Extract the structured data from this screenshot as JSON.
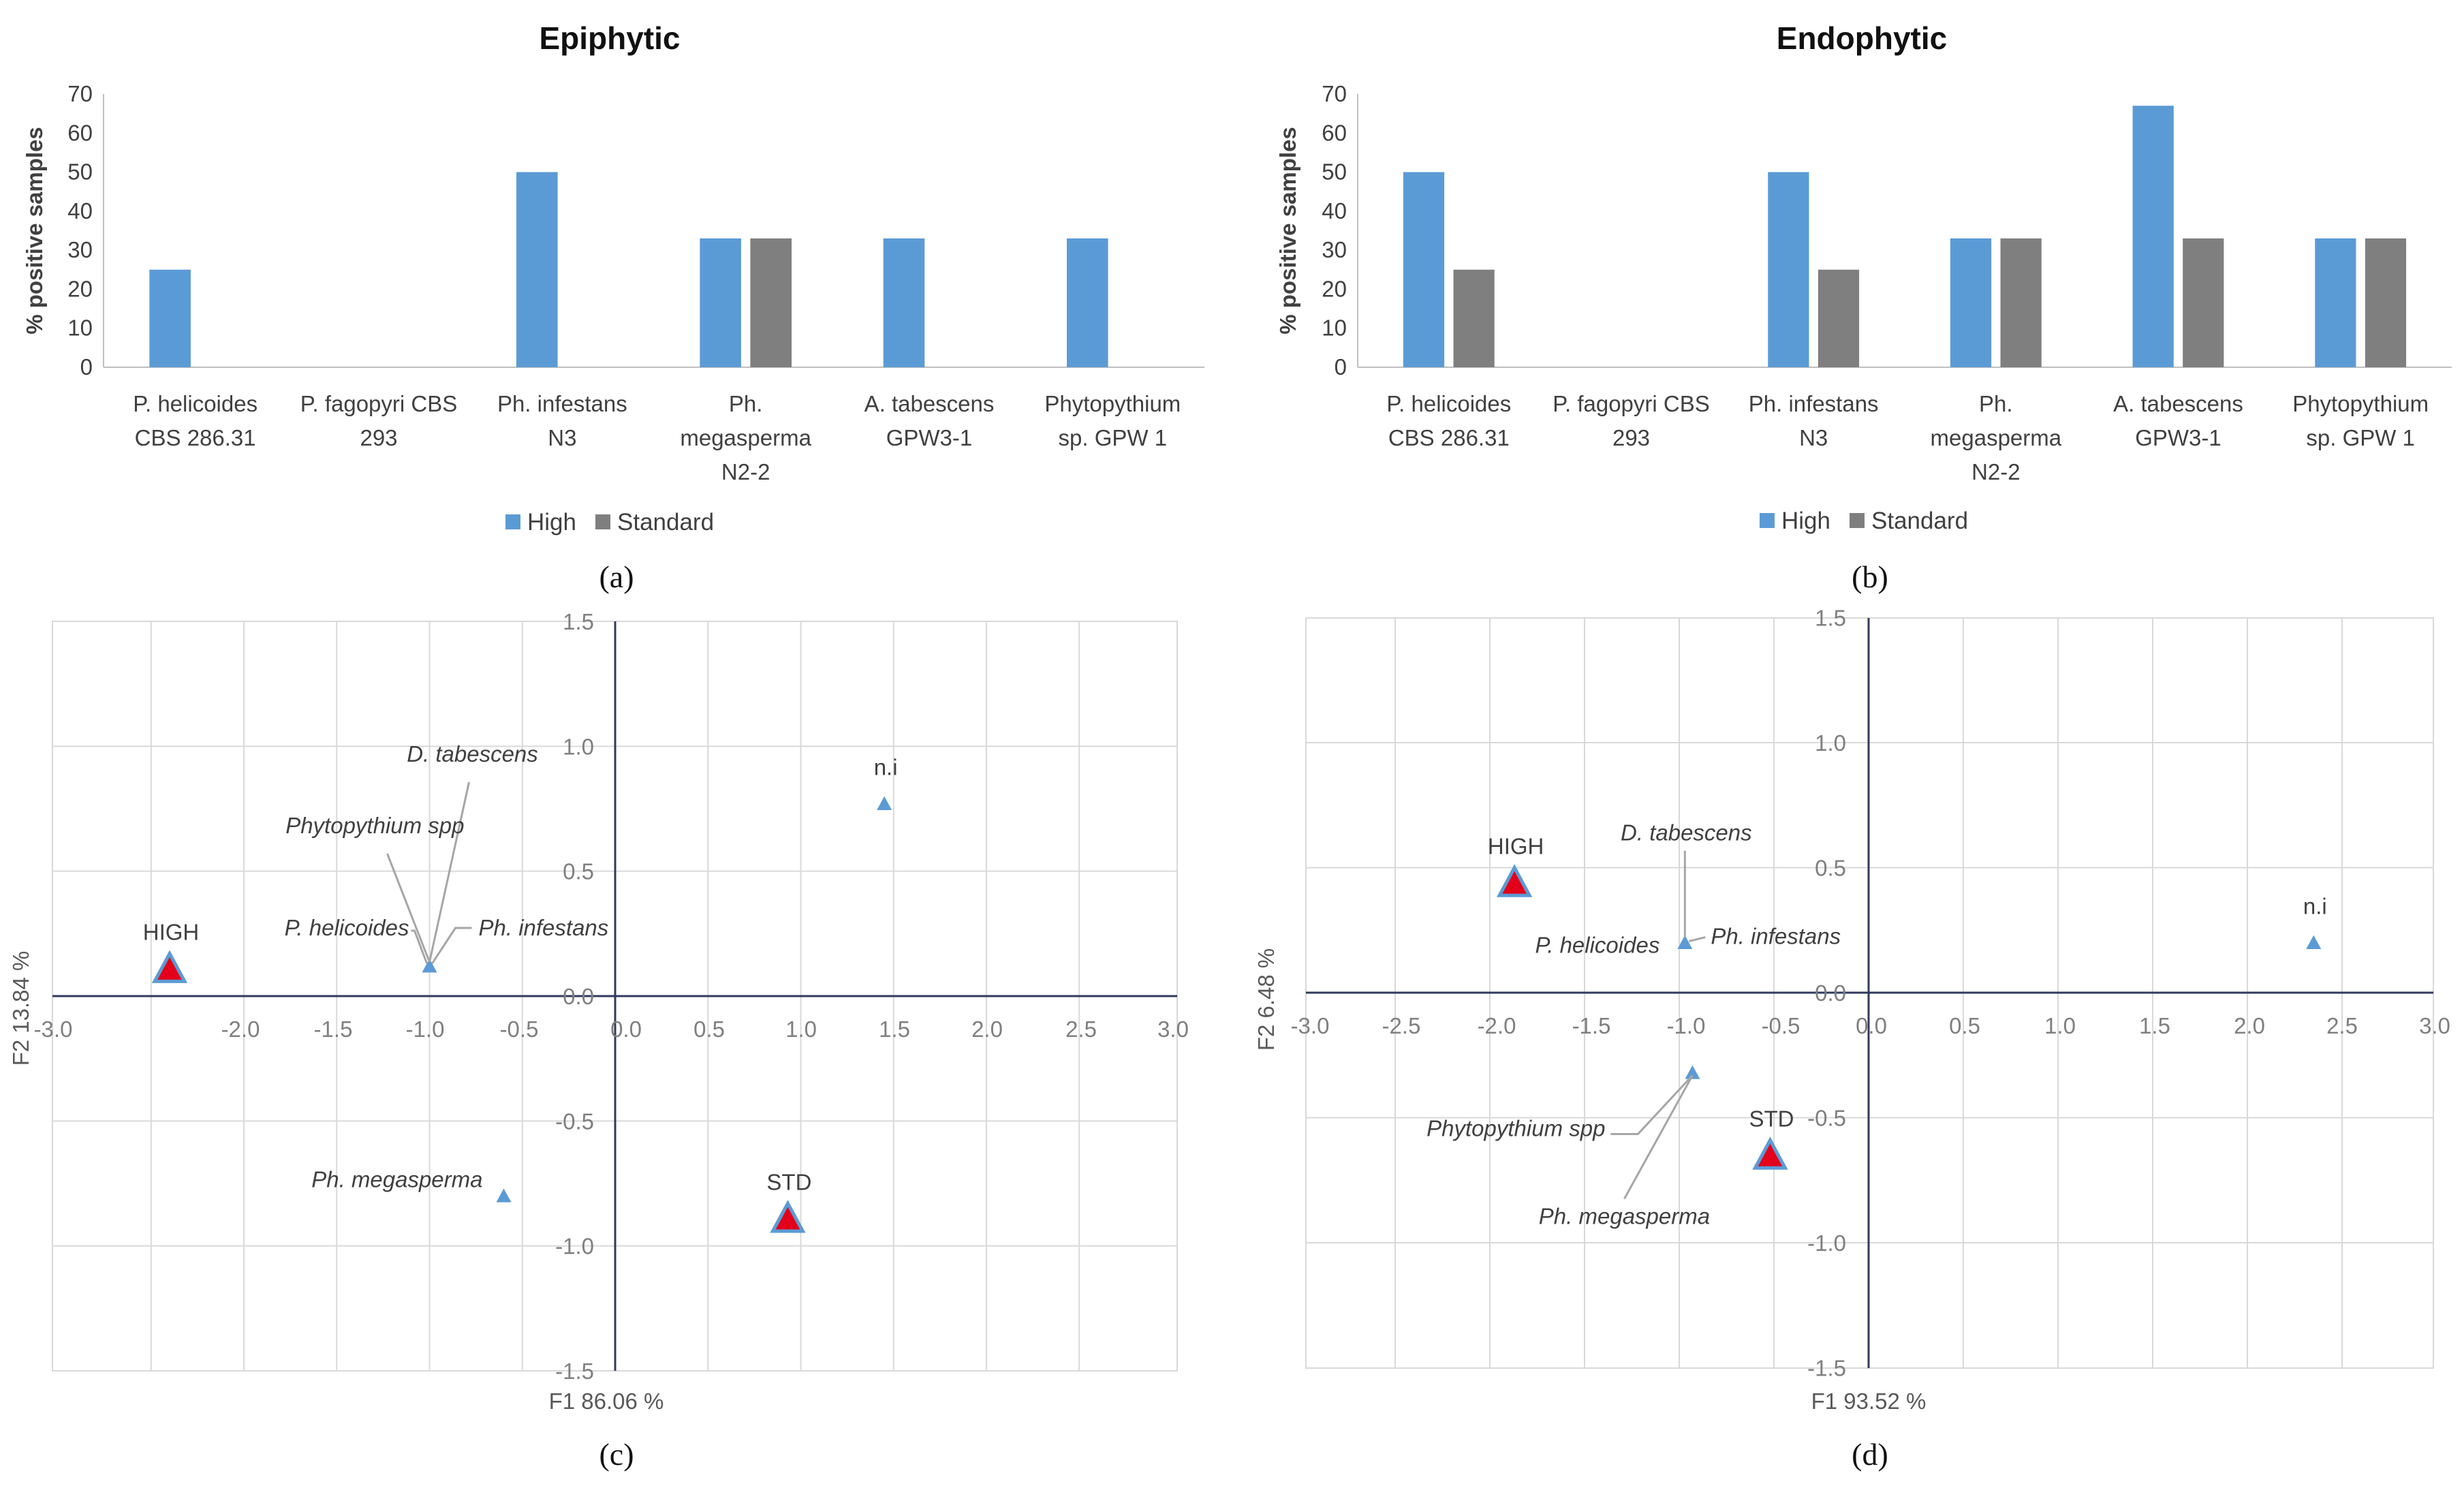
{
  "colors": {
    "high": "#5b9bd5",
    "standard": "#7f7f7f",
    "marker_fill": "#e3001b",
    "marker_edge": "#5b9bd5",
    "axis": "#2f3b5e",
    "grid": "#d9d9d9"
  },
  "chart_data": [
    {
      "id": "a",
      "type": "bar",
      "title": "Epiphytic",
      "panel_label": "(a)",
      "ylabel": "% positive samples",
      "ylim": [
        0,
        70
      ],
      "yticks": [
        0,
        10,
        20,
        30,
        40,
        50,
        60,
        70
      ],
      "categories": [
        [
          "P. helicoides",
          "CBS 286.31"
        ],
        [
          "P. fagopyri   CBS",
          "293"
        ],
        [
          "Ph. infestans",
          "N3"
        ],
        [
          "Ph.",
          "megasperma",
          "N2-2"
        ],
        [
          "A. tabescens",
          "GPW3-1"
        ],
        [
          "Phytopythium",
          "sp.  GPW 1"
        ]
      ],
      "series": [
        {
          "name": "High",
          "values": [
            25,
            0,
            50,
            33,
            33,
            33
          ]
        },
        {
          "name": "Standard",
          "values": [
            0,
            0,
            0,
            33,
            0,
            0
          ]
        }
      ]
    },
    {
      "id": "b",
      "type": "bar",
      "title": "Endophytic",
      "panel_label": "(b)",
      "ylabel": "% positive samples",
      "ylim": [
        0,
        70
      ],
      "yticks": [
        0,
        10,
        20,
        30,
        40,
        50,
        60,
        70
      ],
      "categories": [
        [
          "P. helicoides",
          "CBS 286.31"
        ],
        [
          "P. fagopyri   CBS",
          "293"
        ],
        [
          "Ph. infestans",
          "N3"
        ],
        [
          "Ph.",
          "megasperma",
          "N2-2"
        ],
        [
          "A. tabescens",
          "GPW3-1"
        ],
        [
          "Phytopythium",
          "sp.  GPW 1"
        ]
      ],
      "series": [
        {
          "name": "High",
          "values": [
            50,
            0,
            50,
            33,
            67,
            33
          ]
        },
        {
          "name": "Standard",
          "values": [
            25,
            0,
            25,
            33,
            33,
            33
          ]
        }
      ]
    },
    {
      "id": "c",
      "type": "scatter",
      "panel_label": "(c)",
      "xlabel": "F1 86.06 %",
      "ylabel": "F2 13.84 %",
      "xlim": [
        -3.0,
        3.0
      ],
      "ylim": [
        -1.5,
        1.5
      ],
      "xticks": [
        "-3.0",
        "-2.0",
        "-1.5",
        "-1.0",
        "-0.5",
        "0.0",
        "0.5",
        "1.0",
        "1.5",
        "2.0",
        "2.5",
        "3.0"
      ],
      "yticks": [
        "1.5",
        "1.0",
        "0.5",
        "0.0",
        "-0.5",
        "-1.0",
        "-1.5"
      ],
      "points": [
        {
          "label": "HIGH",
          "x": -2.4,
          "y": 0.11,
          "kind": "treatment"
        },
        {
          "label": "STD",
          "x": 0.93,
          "y": -0.89,
          "kind": "treatment"
        },
        {
          "label": "n.i",
          "x": 1.45,
          "y": 0.77,
          "kind": "species"
        },
        {
          "label": "Ph. megasperma",
          "x": -0.6,
          "y": -0.8,
          "kind": "species"
        },
        {
          "label": "D. tabescens",
          "x": -1.0,
          "y": 0.12,
          "kind": "species"
        },
        {
          "label": "Phytopythium spp",
          "x": -1.0,
          "y": 0.12,
          "kind": "species"
        },
        {
          "label": "P. helicoides",
          "x": -1.0,
          "y": 0.12,
          "kind": "species"
        },
        {
          "label": "Ph. infestans",
          "x": -1.0,
          "y": 0.12,
          "kind": "species"
        }
      ]
    },
    {
      "id": "d",
      "type": "scatter",
      "panel_label": "(d)",
      "xlabel": "F1 93.52 %",
      "ylabel": "F2 6.48 %",
      "xlim": [
        -3.0,
        3.0
      ],
      "ylim": [
        -1.5,
        1.5
      ],
      "xticks": [
        "-3.0",
        "-2.5",
        "-2.0",
        "-1.5",
        "-1.0",
        "-0.5",
        "0.0",
        "0.5",
        "1.0",
        "1.5",
        "2.0",
        "2.5",
        "3.0"
      ],
      "yticks": [
        "1.5",
        "1.0",
        "0.5",
        "0.0",
        "-0.5",
        "-1.0",
        "-1.5"
      ],
      "points": [
        {
          "label": "HIGH",
          "x": -1.87,
          "y": 0.44,
          "kind": "treatment"
        },
        {
          "label": "STD",
          "x": -0.52,
          "y": -0.65,
          "kind": "treatment"
        },
        {
          "label": "n.i",
          "x": 2.35,
          "y": 0.2,
          "kind": "species"
        },
        {
          "label": "D. tabescens",
          "x": -0.97,
          "y": 0.2,
          "kind": "species"
        },
        {
          "label": "P.  helicoides",
          "x": -0.97,
          "y": 0.2,
          "kind": "species"
        },
        {
          "label": "Ph. infestans",
          "x": -0.97,
          "y": 0.2,
          "kind": "species"
        },
        {
          "label": "Phytopythium spp",
          "x": -0.93,
          "y": -0.32,
          "kind": "species"
        },
        {
          "label": "Ph. megasperma",
          "x": -0.93,
          "y": -0.32,
          "kind": "species"
        }
      ]
    }
  ]
}
